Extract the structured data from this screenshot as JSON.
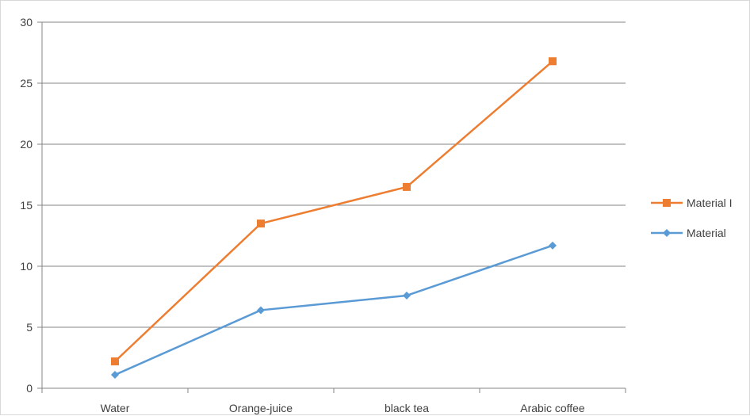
{
  "chart_data": {
    "type": "line",
    "categories": [
      "Water",
      "Orange-juice",
      "black tea",
      "Arabic coffee"
    ],
    "series": [
      {
        "name": "Material I",
        "values": [
          2.2,
          13.5,
          16.5,
          26.8
        ],
        "color": "#ED7D31",
        "marker": "square"
      },
      {
        "name": "Material",
        "values": [
          1.1,
          6.4,
          7.6,
          11.7
        ],
        "color": "#5B9BD5",
        "marker": "diamond"
      }
    ],
    "ylim": [
      0,
      30
    ],
    "yticks": [
      "0",
      "5",
      "10",
      "15",
      "20",
      "25",
      "30"
    ],
    "grid": true,
    "legend_position": "right"
  }
}
